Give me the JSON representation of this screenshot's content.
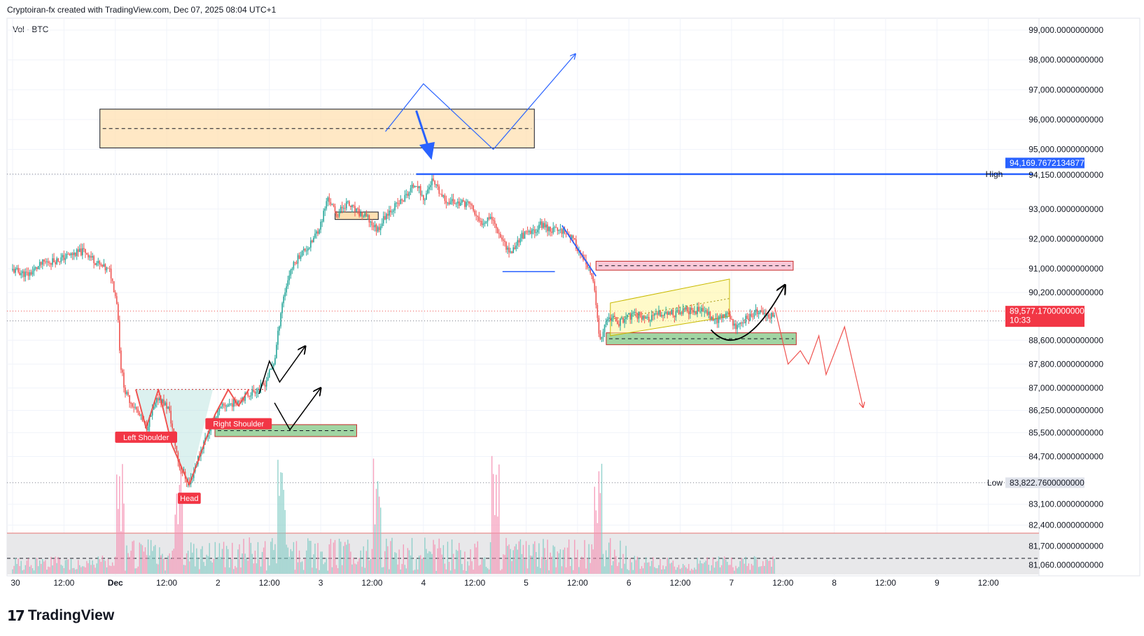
{
  "header": {
    "title": "Cryptoiran-fx created with TradingView.com, Dec 07, 2025 08:04 UTC+1",
    "indicator": "Vol · BTC",
    "brand": "TradingView"
  },
  "colors": {
    "up": "#26a69a",
    "down": "#ef5350",
    "blue": "#2962ff",
    "resistance_fill": "#ffe0b2",
    "supply_fill": "#f8bbd0",
    "demand_fill": "#81c784",
    "badge_red": "#f23645",
    "badge_blue": "#2962ff"
  },
  "chart_data": {
    "type": "candlestick",
    "symbol": "BTC",
    "ylim": [
      80700,
      99400
    ],
    "y_ticks": [
      {
        "value": 99000,
        "label": "99,000.0000000000"
      },
      {
        "value": 98000,
        "label": "98,000.0000000000"
      },
      {
        "value": 97000,
        "label": "97,000.0000000000"
      },
      {
        "value": 96000,
        "label": "96,000.0000000000"
      },
      {
        "value": 95000,
        "label": "95,000.0000000000"
      },
      {
        "value": 94150,
        "label": "94,150.0000000000"
      },
      {
        "value": 93000,
        "label": "93,000.0000000000"
      },
      {
        "value": 92000,
        "label": "92,000.0000000000"
      },
      {
        "value": 91000,
        "label": "91,000.0000000000"
      },
      {
        "value": 90200,
        "label": "90,200.0000000000"
      },
      {
        "value": 88600,
        "label": "88,600.0000000000"
      },
      {
        "value": 87800,
        "label": "87,800.0000000000"
      },
      {
        "value": 87000,
        "label": "87,000.0000000000"
      },
      {
        "value": 86250,
        "label": "86,250.0000000000"
      },
      {
        "value": 85500,
        "label": "85,500.0000000000"
      },
      {
        "value": 84700,
        "label": "84,700.0000000000"
      },
      {
        "value": 83100,
        "label": "83,100.0000000000"
      },
      {
        "value": 82400,
        "label": "82,400.0000000000"
      },
      {
        "value": 81700,
        "label": "81,700.0000000000"
      },
      {
        "value": 81060,
        "label": "81,060.0000000000"
      }
    ],
    "x_ticks": [
      {
        "pos": 0,
        "label": "30"
      },
      {
        "pos": 0.5,
        "label": "12:00"
      },
      {
        "pos": 1,
        "label": "Dec"
      },
      {
        "pos": 1.5,
        "label": "12:00"
      },
      {
        "pos": 2,
        "label": "2"
      },
      {
        "pos": 2.5,
        "label": "12:00"
      },
      {
        "pos": 3,
        "label": "3"
      },
      {
        "pos": 3.5,
        "label": "12:00"
      },
      {
        "pos": 4,
        "label": "4"
      },
      {
        "pos": 4.5,
        "label": "12:00"
      },
      {
        "pos": 5,
        "label": "5"
      },
      {
        "pos": 5.5,
        "label": "12:00"
      },
      {
        "pos": 6,
        "label": "6"
      },
      {
        "pos": 6.5,
        "label": "12:00"
      },
      {
        "pos": 7,
        "label": "7"
      },
      {
        "pos": 7.5,
        "label": "12:00"
      },
      {
        "pos": 8,
        "label": "8"
      },
      {
        "pos": 8.5,
        "label": "12:00"
      },
      {
        "pos": 9,
        "label": "9"
      },
      {
        "pos": 9.5,
        "label": "12:00"
      }
    ],
    "price_path": [
      [
        0,
        90950
      ],
      [
        0.15,
        90800
      ],
      [
        0.3,
        91200
      ],
      [
        0.45,
        91300
      ],
      [
        0.55,
        91450
      ],
      [
        0.7,
        91600
      ],
      [
        0.85,
        91100
      ],
      [
        0.95,
        90900
      ],
      [
        1.02,
        89800
      ],
      [
        1.05,
        87800
      ],
      [
        1.1,
        86800
      ],
      [
        1.2,
        86300
      ],
      [
        1.3,
        85650
      ],
      [
        1.42,
        86700
      ],
      [
        1.52,
        86300
      ],
      [
        1.62,
        84400
      ],
      [
        1.72,
        83750
      ],
      [
        1.8,
        84600
      ],
      [
        1.88,
        85350
      ],
      [
        1.97,
        86000
      ],
      [
        2.05,
        86400
      ],
      [
        2.15,
        86500
      ],
      [
        2.25,
        86700
      ],
      [
        2.35,
        86900
      ],
      [
        2.45,
        87100
      ],
      [
        2.55,
        87900
      ],
      [
        2.62,
        89800
      ],
      [
        2.7,
        90900
      ],
      [
        2.8,
        91500
      ],
      [
        2.9,
        91800
      ],
      [
        3.0,
        92500
      ],
      [
        3.07,
        93400
      ],
      [
        3.15,
        92800
      ],
      [
        3.25,
        93200
      ],
      [
        3.35,
        92900
      ],
      [
        3.45,
        92700
      ],
      [
        3.55,
        92300
      ],
      [
        3.65,
        92900
      ],
      [
        3.8,
        93300
      ],
      [
        3.93,
        93900
      ],
      [
        4.0,
        93300
      ],
      [
        4.08,
        93950
      ],
      [
        4.2,
        93300
      ],
      [
        4.35,
        93200
      ],
      [
        4.45,
        93200
      ],
      [
        4.55,
        92500
      ],
      [
        4.65,
        92800
      ],
      [
        4.75,
        92100
      ],
      [
        4.85,
        91500
      ],
      [
        4.95,
        92100
      ],
      [
        5.05,
        92200
      ],
      [
        5.15,
        92500
      ],
      [
        5.25,
        92300
      ],
      [
        5.35,
        92300
      ],
      [
        5.42,
        92150
      ],
      [
        5.5,
        91700
      ],
      [
        5.58,
        91100
      ],
      [
        5.65,
        90700
      ],
      [
        5.72,
        88500
      ],
      [
        5.8,
        89400
      ],
      [
        5.9,
        89200
      ],
      [
        6.0,
        89400
      ],
      [
        6.1,
        89450
      ],
      [
        6.2,
        89300
      ],
      [
        6.3,
        89500
      ],
      [
        6.45,
        89500
      ],
      [
        6.55,
        89600
      ],
      [
        6.65,
        89600
      ],
      [
        6.75,
        89550
      ],
      [
        6.85,
        89250
      ],
      [
        6.95,
        89500
      ],
      [
        7.05,
        89050
      ],
      [
        7.15,
        89350
      ],
      [
        7.25,
        89550
      ],
      [
        7.35,
        89400
      ],
      [
        7.42,
        89550
      ]
    ],
    "annotations": {
      "last_price": {
        "value": 89577.17,
        "label": "89,577.1700000000",
        "countdown": "10:33"
      },
      "high": {
        "value": 94169.7672134877,
        "label": "94,169.7672134877",
        "tag": "High"
      },
      "low": {
        "value": 83822.76,
        "label": "83,822.7600000000",
        "tag": "Low"
      },
      "pattern_labels": [
        "Left Shoulder",
        "Head",
        "Right Shoulder"
      ],
      "zones": [
        {
          "name": "resistance-zone",
          "from_x": 0.85,
          "to_x": 5.08,
          "y_top": 96350,
          "y_bottom": 95050
        },
        {
          "name": "supply-zone",
          "from_x": 5.68,
          "to_x": 7.6,
          "y_top": 91250,
          "y_bottom": 90950
        },
        {
          "name": "demand-zone-right",
          "from_x": 5.78,
          "to_x": 7.63,
          "y_top": 88850,
          "y_bottom": 88450
        },
        {
          "name": "demand-zone-left",
          "from_x": 1.97,
          "to_x": 3.35,
          "y_top": 85770,
          "y_bottom": 85370
        }
      ]
    }
  }
}
